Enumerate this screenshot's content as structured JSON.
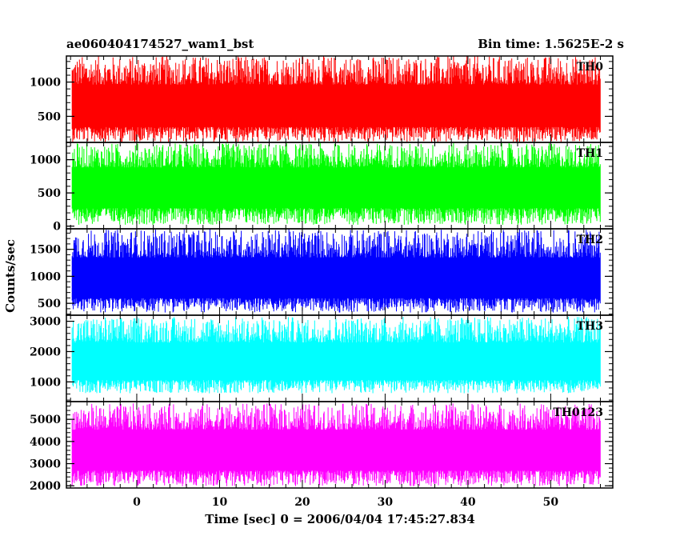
{
  "chart_data": {
    "type": "line",
    "title_left": "ae060404174527_wam1_bst",
    "title_right": "Bin time: 1.5625E-2 s",
    "xlabel": "Time [sec] 0 = 2006/04/04 17:45:27.834",
    "ylabel": "Counts/sec",
    "xlim": [
      -8.5,
      57.5
    ],
    "x_data_range": [
      -7.8,
      56.0
    ],
    "xticks": [
      0,
      10,
      20,
      30,
      40,
      50
    ],
    "x_minor_step": 2,
    "panels": [
      {
        "name": "TH0",
        "color": "#ff0000",
        "ylim": [
          120,
          1380
        ],
        "yticks": [
          500,
          1000
        ],
        "y_minor_step": 100,
        "baseline": 620,
        "low": 120,
        "high": 1380
      },
      {
        "name": "TH1",
        "color": "#00ff00",
        "ylim": [
          -40,
          1260
        ],
        "yticks": [
          0,
          500,
          1000
        ],
        "y_minor_step": 100,
        "baseline": 580,
        "low": 20,
        "high": 1250
      },
      {
        "name": "TH2",
        "color": "#0000ff",
        "ylim": [
          280,
          1880
        ],
        "yticks": [
          500,
          1000,
          1500
        ],
        "y_minor_step": 100,
        "baseline": 920,
        "low": 330,
        "high": 1870
      },
      {
        "name": "TH3",
        "color": "#00ffff",
        "ylim": [
          350,
          3200
        ],
        "yticks": [
          1000,
          2000,
          3000
        ],
        "y_minor_step": 200,
        "baseline": 1600,
        "low": 620,
        "high": 3150
      },
      {
        "name": "TH0123",
        "color": "#ff00ff",
        "ylim": [
          1900,
          5800
        ],
        "yticks": [
          2000,
          3000,
          4000,
          5000
        ],
        "y_minor_step": 200,
        "baseline": 3550,
        "low": 1980,
        "high": 5720
      }
    ]
  }
}
